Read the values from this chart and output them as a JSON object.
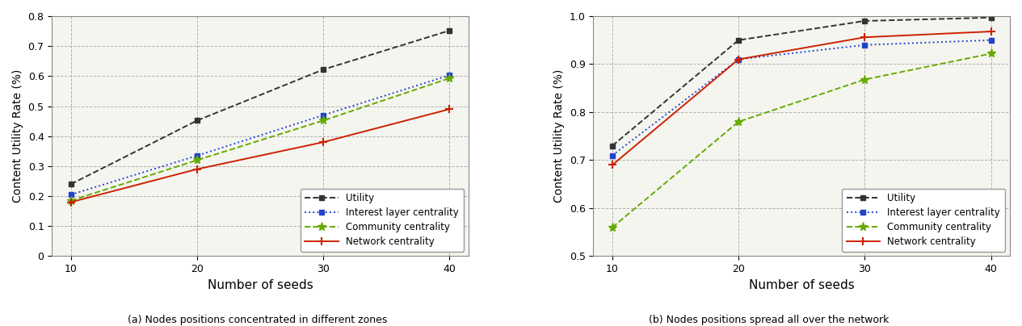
{
  "seeds": [
    10,
    20,
    30,
    40
  ],
  "left": {
    "ylabel": "Content Utility Rate (%)",
    "xlabel": "Number of seeds",
    "caption": "(a) Nodes positions concentrated in different zones",
    "ylim": [
      0,
      0.8
    ],
    "yticks": [
      0,
      0.1,
      0.2,
      0.3,
      0.4,
      0.5,
      0.6,
      0.7,
      0.8
    ],
    "network_centrality": [
      0.18,
      0.29,
      0.38,
      0.49
    ],
    "community_centrality": [
      0.185,
      0.32,
      0.452,
      0.593
    ],
    "interest_layer_centrality": [
      0.205,
      0.335,
      0.47,
      0.603
    ],
    "utility": [
      0.24,
      0.452,
      0.622,
      0.752
    ]
  },
  "right": {
    "ylabel": "Content Utility Rate (%)",
    "xlabel": "Number of seeds",
    "caption": "(b) Nodes positions spread all over the network",
    "ylim": [
      0.5,
      1.0
    ],
    "yticks": [
      0.5,
      0.6,
      0.7,
      0.8,
      0.9,
      1.0
    ],
    "network_centrality": [
      0.69,
      0.91,
      0.956,
      0.968
    ],
    "community_centrality": [
      0.56,
      0.78,
      0.868,
      0.922
    ],
    "interest_layer_centrality": [
      0.71,
      0.91,
      0.94,
      0.95
    ],
    "utility": [
      0.73,
      0.95,
      0.99,
      0.997
    ]
  },
  "colors": {
    "network_centrality": "#cc2200",
    "community_centrality": "#66aa00",
    "interest_layer_centrality": "#2244cc",
    "utility": "#333333"
  },
  "bg_color": "#f5f5f0",
  "grid_color": "#aaaaaa",
  "legend_labels": {
    "network_centrality": "Network centrality",
    "community_centrality": "Community centrality",
    "interest_layer_centrality": "Interest layer centrality",
    "utility": "Utility"
  }
}
